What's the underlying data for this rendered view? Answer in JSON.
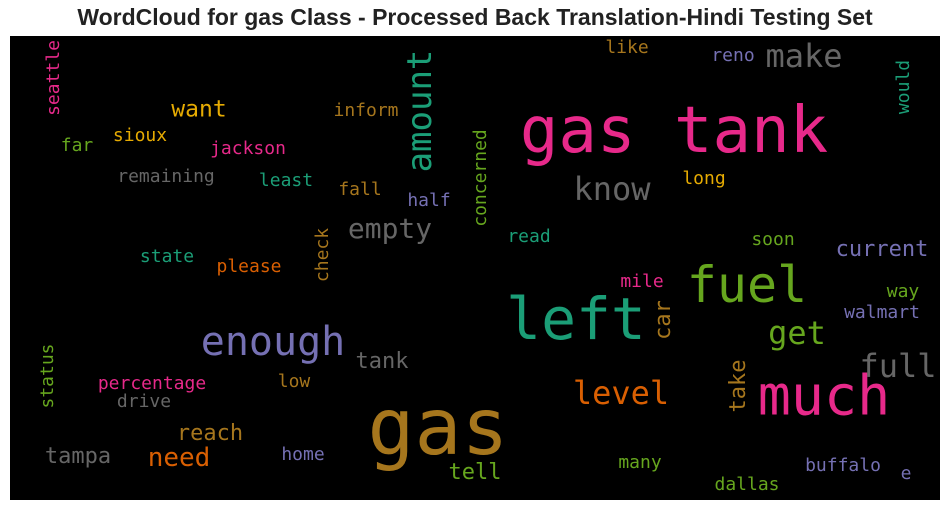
{
  "chart_data": {
    "type": "wordcloud",
    "title": "WordCloud for gas Class - Processed Back Translation-Hindi Testing Set",
    "words": [
      {
        "text": "gas",
        "color": "#a6761d"
      },
      {
        "text": "gas tank",
        "color": "#e7298a"
      },
      {
        "text": "left",
        "color": "#1b9e77"
      },
      {
        "text": "much",
        "color": "#e7298a"
      },
      {
        "text": "fuel",
        "color": "#66a61e"
      },
      {
        "text": "enough",
        "color": "#7570b3"
      },
      {
        "text": "amount",
        "color": "#1b9e77"
      },
      {
        "text": "know",
        "color": "#666666"
      },
      {
        "text": "make",
        "color": "#666666"
      },
      {
        "text": "full",
        "color": "#666666"
      },
      {
        "text": "level",
        "color": "#d95f02"
      },
      {
        "text": "empty",
        "color": "#666666"
      },
      {
        "text": "get",
        "color": "#66a61e"
      },
      {
        "text": "need",
        "color": "#d95f02"
      },
      {
        "text": "want",
        "color": "#e6ab02"
      },
      {
        "text": "current",
        "color": "#7570b3"
      },
      {
        "text": "tank",
        "color": "#666666"
      },
      {
        "text": "reach",
        "color": "#a6761d"
      },
      {
        "text": "tampa",
        "color": "#666666"
      },
      {
        "text": "take",
        "color": "#a6761d"
      },
      {
        "text": "tell",
        "color": "#66a61e"
      },
      {
        "text": "car",
        "color": "#a6761d"
      },
      {
        "text": "jackson",
        "color": "#e7298a"
      },
      {
        "text": "inform",
        "color": "#a6761d"
      },
      {
        "text": "remaining",
        "color": "#666666"
      },
      {
        "text": "sioux",
        "color": "#e6ab02"
      },
      {
        "text": "far",
        "color": "#66a61e"
      },
      {
        "text": "least",
        "color": "#1b9e77"
      },
      {
        "text": "fall",
        "color": "#a6761d"
      },
      {
        "text": "half",
        "color": "#7570b3"
      },
      {
        "text": "long",
        "color": "#e6ab02"
      },
      {
        "text": "concerned",
        "color": "#66a61e"
      },
      {
        "text": "read",
        "color": "#1b9e77"
      },
      {
        "text": "soon",
        "color": "#66a61e"
      },
      {
        "text": "way",
        "color": "#66a61e"
      },
      {
        "text": "walmart",
        "color": "#7570b3"
      },
      {
        "text": "mile",
        "color": "#e7298a"
      },
      {
        "text": "state",
        "color": "#1b9e77"
      },
      {
        "text": "please",
        "color": "#d95f02"
      },
      {
        "text": "check",
        "color": "#a6761d"
      },
      {
        "text": "percentage",
        "color": "#e7298a"
      },
      {
        "text": "drive",
        "color": "#666666"
      },
      {
        "text": "low",
        "color": "#a6761d"
      },
      {
        "text": "home",
        "color": "#7570b3"
      },
      {
        "text": "many",
        "color": "#66a61e"
      },
      {
        "text": "buffalo",
        "color": "#7570b3"
      },
      {
        "text": "dallas",
        "color": "#66a61e"
      },
      {
        "text": "e",
        "color": "#7570b3"
      },
      {
        "text": "status",
        "color": "#66a61e"
      },
      {
        "text": "seattle",
        "color": "#e7298a"
      },
      {
        "text": "like",
        "color": "#a6761d"
      },
      {
        "text": "reno",
        "color": "#7570b3"
      },
      {
        "text": "would",
        "color": "#1b9e77"
      }
    ]
  }
}
